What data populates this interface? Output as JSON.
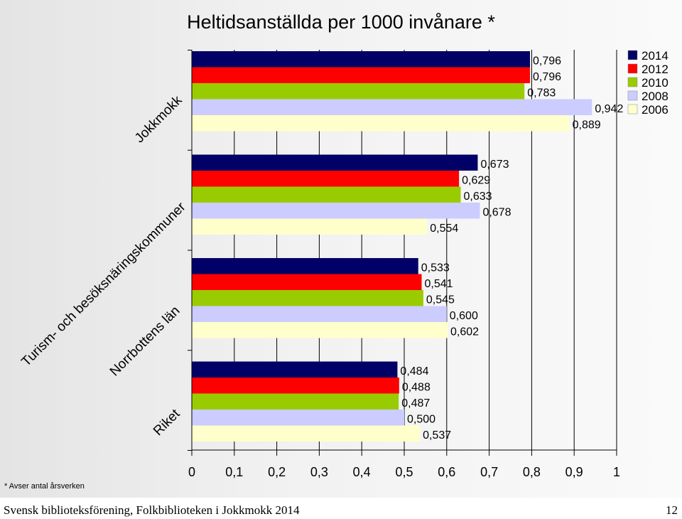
{
  "footer": {
    "source": "Svensk biblioteksförening, Folkbiblioteken i Jokkmokk 2014",
    "page": "12"
  },
  "footnote": "* Avser antal årsverken",
  "colors": {
    "2014": "#000066",
    "2012": "#ff0000",
    "2010": "#99cc00",
    "2008": "#ccccff",
    "2006": "#ffffcc"
  },
  "chart_data": {
    "type": "bar",
    "orientation": "horizontal",
    "title": "Heltidsanställda per 1000 invånare *",
    "categories": [
      "Jokkmokk",
      "Turism- och besöksnäringskommuner",
      "Norrbottens län",
      "Riket"
    ],
    "series": [
      {
        "name": "2014",
        "color": "#000066",
        "values": [
          0.796,
          0.673,
          0.533,
          0.484
        ],
        "labels": [
          "0,796",
          "0,673",
          "0,533",
          "0,484"
        ]
      },
      {
        "name": "2012",
        "color": "#ff0000",
        "values": [
          0.796,
          0.629,
          0.541,
          0.488
        ],
        "labels": [
          "0,796",
          "0,629",
          "0,541",
          "0,488"
        ]
      },
      {
        "name": "2010",
        "color": "#99cc00",
        "values": [
          0.783,
          0.633,
          0.545,
          0.487
        ],
        "labels": [
          "0,783",
          "0,633",
          "0,545",
          "0,487"
        ]
      },
      {
        "name": "2008",
        "color": "#ccccff",
        "values": [
          0.942,
          0.678,
          0.6,
          0.5
        ],
        "labels": [
          "0,942",
          "0,678",
          "0,600",
          "0,500"
        ]
      },
      {
        "name": "2006",
        "color": "#ffffcc",
        "values": [
          0.889,
          0.554,
          0.602,
          0.537
        ],
        "labels": [
          "0,889",
          "0,554",
          "0,602",
          "0,537"
        ]
      }
    ],
    "xlim": [
      0,
      1
    ],
    "xticks": [
      "0",
      "0,1",
      "0,2",
      "0,3",
      "0,4",
      "0,5",
      "0,6",
      "0,7",
      "0,8",
      "0,9",
      "1"
    ],
    "grid": "vertical",
    "legend": "top-right"
  }
}
